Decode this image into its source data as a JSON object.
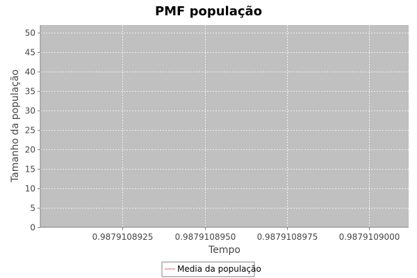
{
  "chart_data": {
    "type": "line",
    "title": "PMF população",
    "xlabel": "Tempo",
    "ylabel": "Tamanho da população",
    "xlim": [
      0.98791089,
      0.9879109012
    ],
    "ylim": [
      0,
      52
    ],
    "x_ticks": [
      0.9879108925,
      0.987910895,
      0.9879108975,
      0.9879109
    ],
    "x_tick_labels": [
      "0.9879108925",
      "0.9879108950",
      "0.9879108975",
      "0.9879109000"
    ],
    "y_ticks": [
      0,
      5,
      10,
      15,
      20,
      25,
      30,
      35,
      40,
      45,
      50
    ],
    "y_tick_labels": [
      "0",
      "5",
      "10",
      "15",
      "20",
      "25",
      "30",
      "35",
      "40",
      "45",
      "50"
    ],
    "grid": true,
    "legend_position": "bottom",
    "series": [
      {
        "name": "Media da população",
        "color": "#e06666",
        "x": [],
        "y": []
      }
    ],
    "colors": {
      "plot_background": "#c0c0c0",
      "grid": "#ffffff",
      "axis": "#808080"
    }
  }
}
